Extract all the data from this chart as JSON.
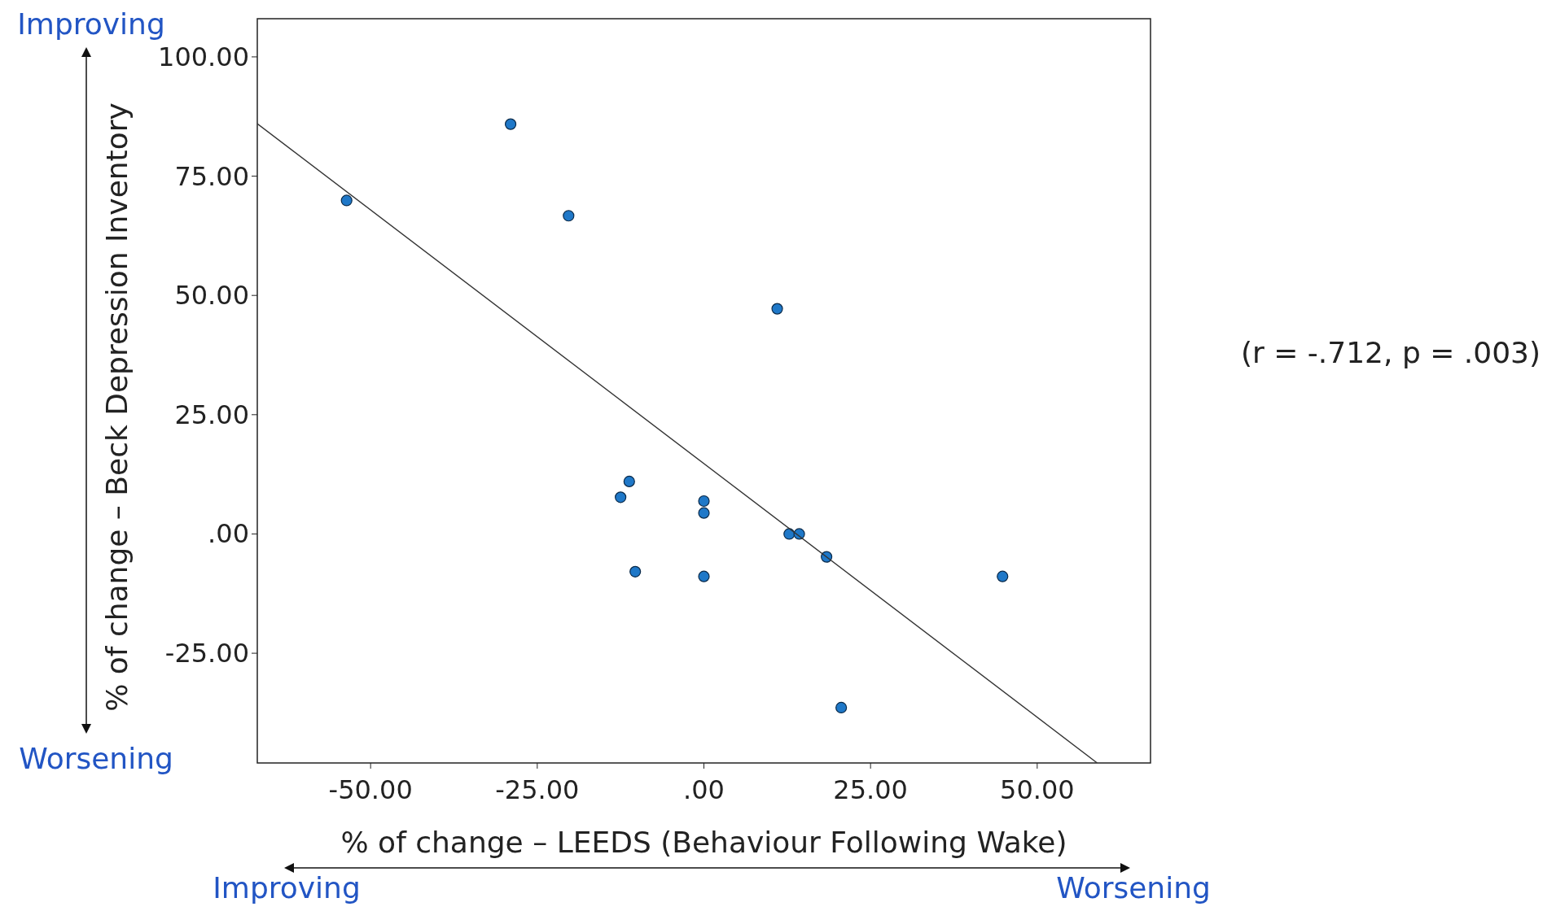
{
  "chart_data": {
    "type": "scatter",
    "xlabel": "% of change – LEEDS (Behaviour Following Wake)",
    "ylabel": "% of change – Beck Depression Inventory",
    "xlim": [
      -67,
      67
    ],
    "ylim": [
      -48,
      108
    ],
    "xticks": [
      {
        "value": -50,
        "label": "-50.00"
      },
      {
        "value": -25,
        "label": "-25.00"
      },
      {
        "value": 0,
        "label": ".00"
      },
      {
        "value": 25,
        "label": "25.00"
      },
      {
        "value": 50,
        "label": "50.00"
      }
    ],
    "yticks": [
      {
        "value": -25,
        "label": "-25.00"
      },
      {
        "value": 0,
        "label": ".00"
      },
      {
        "value": 25,
        "label": "25.00"
      },
      {
        "value": 50,
        "label": "50.00"
      },
      {
        "value": 75,
        "label": "75.00"
      },
      {
        "value": 100,
        "label": "100.00"
      }
    ],
    "grid": false,
    "series": [
      {
        "marker": "circle",
        "color": "#1f78c8",
        "x": [
          -53.6,
          -29,
          -20.3,
          11,
          -11.2,
          -12.5,
          0,
          0,
          12.8,
          14.3,
          18.4,
          -10.3,
          0,
          44.8,
          20.6
        ],
        "values": [
          69.9,
          85.9,
          66.7,
          47.2,
          11,
          7.7,
          6.9,
          4.4,
          0,
          0,
          -4.8,
          -7.9,
          -8.9,
          -8.9,
          -36.4
        ]
      },
      {
        "type": "line",
        "color": "#333333",
        "x": [
          -67,
          59
        ],
        "values": [
          86,
          -48
        ]
      }
    ],
    "annotations": [
      "Improving",
      "Worsening",
      "Improving",
      "Worsening",
      "(r = -.712, p = .003)"
    ]
  }
}
